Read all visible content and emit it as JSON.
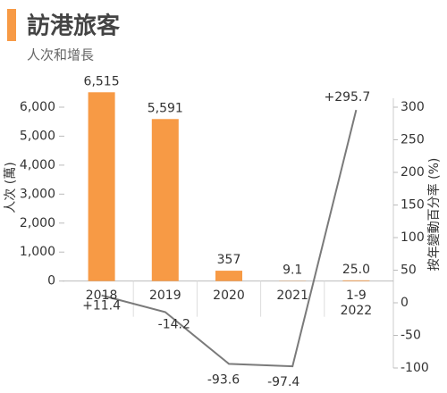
{
  "chart_data": {
    "type": "bar",
    "title": "訪港旅客",
    "subtitle": "人次和增長",
    "categories": [
      "2018",
      "2019",
      "2020",
      "2021",
      "1-9\n2022"
    ],
    "ylabel": "人次 (萬)",
    "y2label": "按年變動百分率 (%)",
    "series": [
      {
        "name": "人次",
        "type": "bar",
        "color": "#f79a45",
        "values": [
          6515,
          5591,
          357,
          9.1,
          25.0
        ],
        "value_labels": [
          "6,515",
          "5,591",
          "357",
          "9.1",
          "25.0"
        ]
      },
      {
        "name": "增長",
        "type": "line",
        "axis": "y2",
        "color": "#7a7a7a",
        "values": [
          11.4,
          -14.2,
          -93.6,
          -97.4,
          295.7
        ],
        "value_labels": [
          "+11.4",
          "-14.2",
          "-93.6",
          "-97.4",
          "+295.7"
        ]
      }
    ],
    "ylim": [
      -3000,
      6000
    ],
    "yticks": [
      0,
      {
        "value": 1000,
        "label": "1,000"
      },
      {
        "value": 2000,
        "label": "2,000"
      },
      {
        "value": 3000,
        "label": "3,000"
      },
      {
        "value": 4000,
        "label": "4,000"
      },
      {
        "value": 5000,
        "label": "5,000"
      },
      {
        "value": 6000,
        "label": "6,000"
      }
    ],
    "y2lim": [
      -100,
      300
    ],
    "y2ticks": [
      -100,
      -50,
      0,
      50,
      100,
      150,
      200,
      250,
      300
    ]
  }
}
